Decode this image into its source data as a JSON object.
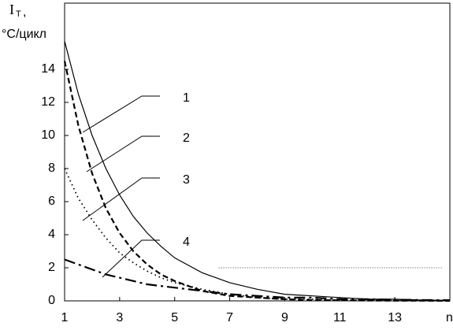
{
  "chart_data": {
    "type": "line",
    "y_label_symbol": "I",
    "y_label_subscript": "T",
    "y_label_comma": ",",
    "y_label_unit": "°C/цикл",
    "x_label": "n",
    "x": [
      1,
      1.5,
      2,
      2.5,
      3,
      3.5,
      4,
      4.5,
      5,
      6,
      7,
      8,
      9,
      10,
      11,
      12,
      13,
      14,
      15
    ],
    "series": [
      {
        "name": "1",
        "color": "#000000",
        "style": "solid",
        "values": [
          15.7,
          12.5,
          10.0,
          8.0,
          6.4,
          5.1,
          4.1,
          3.3,
          2.6,
          1.7,
          1.1,
          0.7,
          0.4,
          0.3,
          0.2,
          0.1,
          0.1,
          0.05,
          0.03
        ]
      },
      {
        "name": "2",
        "color": "#000000",
        "style": "dashed",
        "values": [
          14.5,
          10.6,
          7.7,
          5.6,
          4.1,
          3.0,
          2.2,
          1.6,
          1.2,
          0.6,
          0.3,
          0.2,
          0.1,
          0.05,
          0.03,
          0.02,
          0.01,
          0.01,
          0.0
        ]
      },
      {
        "name": "3",
        "color": "#000000",
        "style": "dotted",
        "values": [
          8,
          6.2,
          4.9,
          3.8,
          2.9,
          2.3,
          1.8,
          1.4,
          1.1,
          0.7,
          0.4,
          0.2,
          0.1,
          0.1,
          0.05,
          0.03,
          0.02,
          0.01,
          0.01
        ]
      },
      {
        "name": "4",
        "color": "#000000",
        "style": "dashdot",
        "values": [
          2.5,
          2.2,
          1.9,
          1.6,
          1.4,
          1.2,
          1.0,
          0.9,
          0.8,
          0.6,
          0.4,
          0.3,
          0.2,
          0.2,
          0.1,
          0.1,
          0.07,
          0.05,
          0.04
        ]
      }
    ],
    "reference_line": {
      "y": 2,
      "x": [
        6.6,
        14.7
      ]
    },
    "xlim": [
      1,
      15
    ],
    "xticks": [
      1,
      3,
      5,
      7,
      9,
      11,
      13
    ],
    "ylim": [
      0,
      18
    ],
    "yticks": [
      0,
      2,
      4,
      6,
      8,
      10,
      12,
      14
    ]
  }
}
